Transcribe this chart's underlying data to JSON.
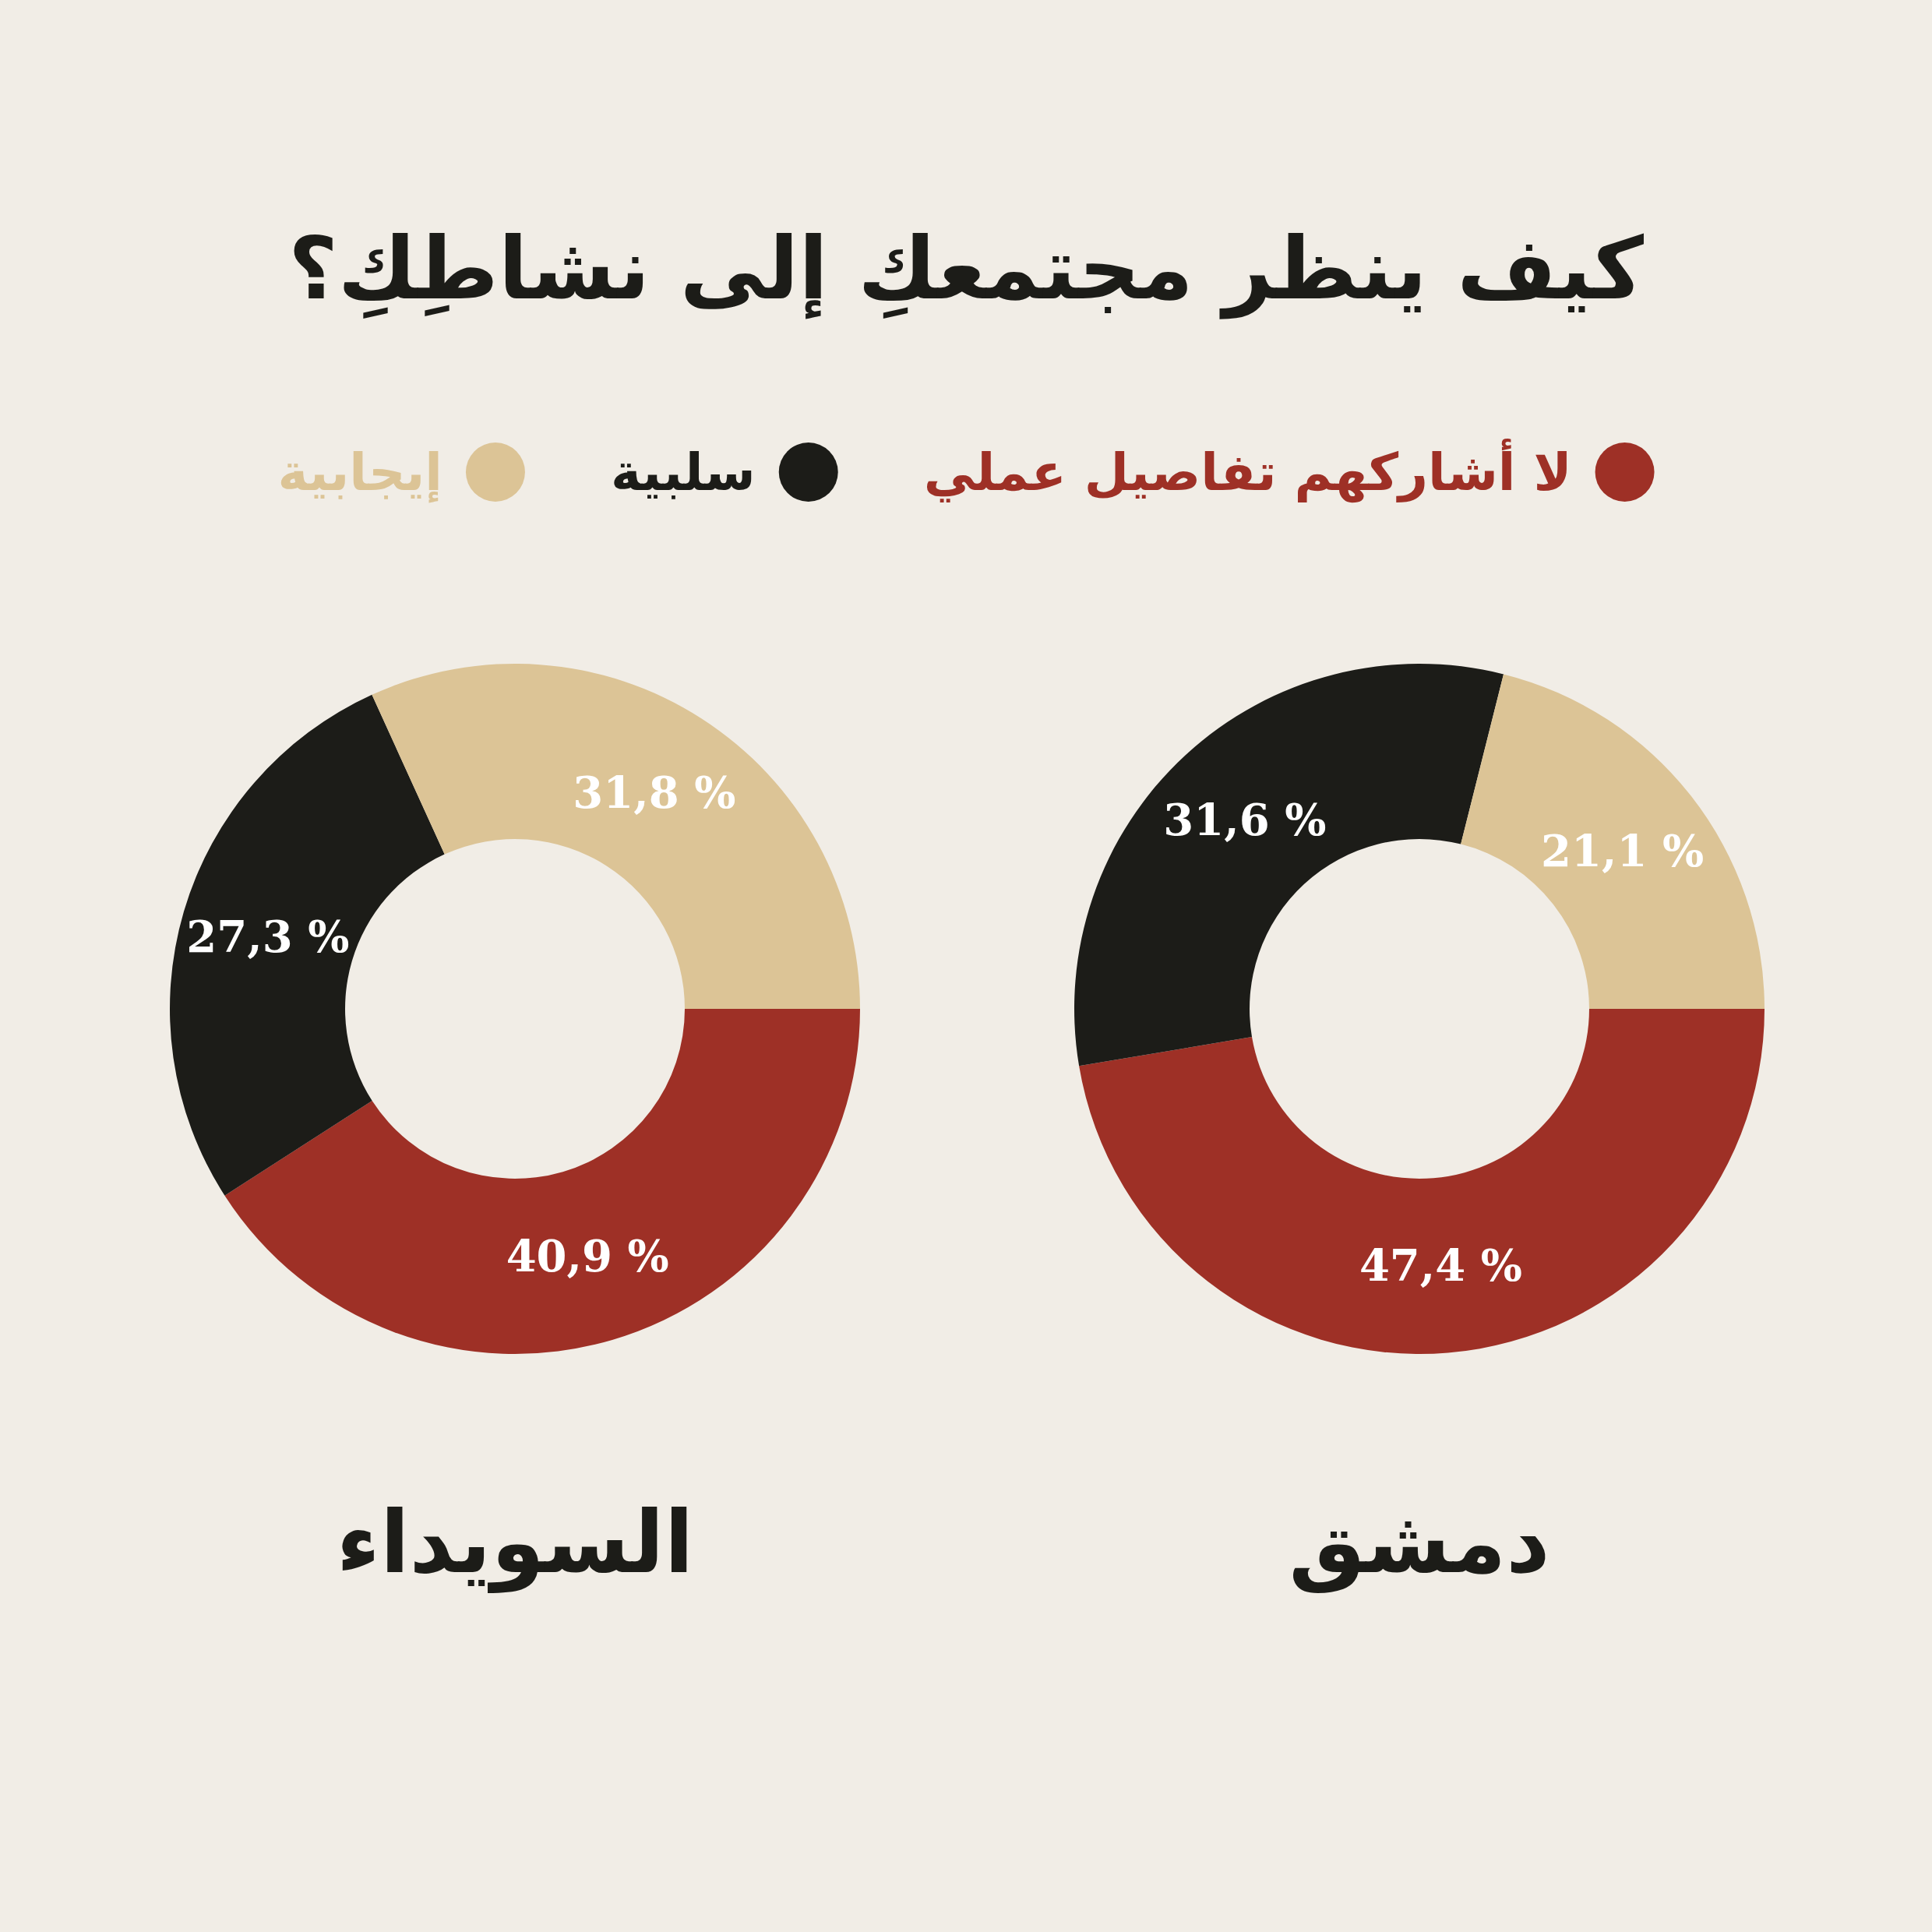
{
  "chart_data": [
    {
      "type": "donut",
      "title": "دمشق",
      "annotations": [
        "كيف ينظر مجتمعكِ إلى نشاطِكِ؟"
      ],
      "legend": "top",
      "categories": [
        "لا أشاركهم تفاصيل عملي",
        "سلبية",
        "إيجابية"
      ],
      "values": [
        47.4,
        31.6,
        21.1
      ],
      "value_labels": [
        "47,4 %",
        "31,6 %",
        "21,1 %"
      ],
      "colors": [
        "#9e3026",
        "#1c1c18",
        "#dcc496"
      ]
    },
    {
      "type": "donut",
      "title": "السويداء",
      "categories": [
        null,
        null,
        null
      ],
      "values": [
        40.9,
        27.3,
        31.8
      ],
      "value_labels": [
        "40,9 %",
        "27,3 %",
        "31,8 %"
      ],
      "colors": [
        "#9e3026",
        "#1c1c18",
        "#dcc496"
      ]
    }
  ]
}
